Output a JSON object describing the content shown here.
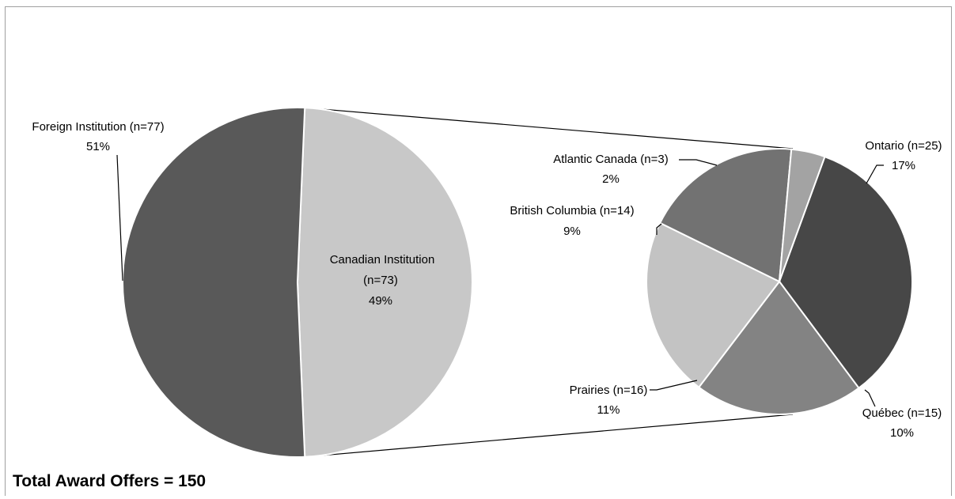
{
  "footer": {
    "total_text": "Total Award Offers = 150"
  },
  "chart_data": [
    {
      "type": "pie",
      "title": "",
      "slices": [
        {
          "label": "Canadian Institution",
          "count_text": "(n=73)",
          "pct_text": "49%",
          "value": 73,
          "color": "#c8c8c8"
        },
        {
          "label": "Foreign Institution (n=77)",
          "pct_text": "51%",
          "value": 77,
          "color": "#595959"
        }
      ]
    },
    {
      "type": "pie",
      "title": "",
      "slices": [
        {
          "label": "Ontario (n=25)",
          "pct_text": "17%",
          "value": 25,
          "color": "#474747"
        },
        {
          "label": "Québec (n=15)",
          "pct_text": "10%",
          "value": 15,
          "color": "#838383"
        },
        {
          "label": "Prairies (n=16)",
          "pct_text": "11%",
          "value": 16,
          "color": "#c3c3c3"
        },
        {
          "label": "British Columbia (n=14)",
          "pct_text": "9%",
          "value": 14,
          "color": "#727272"
        },
        {
          "label": "Atlantic Canada (n=3)",
          "pct_text": "2%",
          "value": 3,
          "color": "#a3a3a3"
        }
      ]
    }
  ]
}
